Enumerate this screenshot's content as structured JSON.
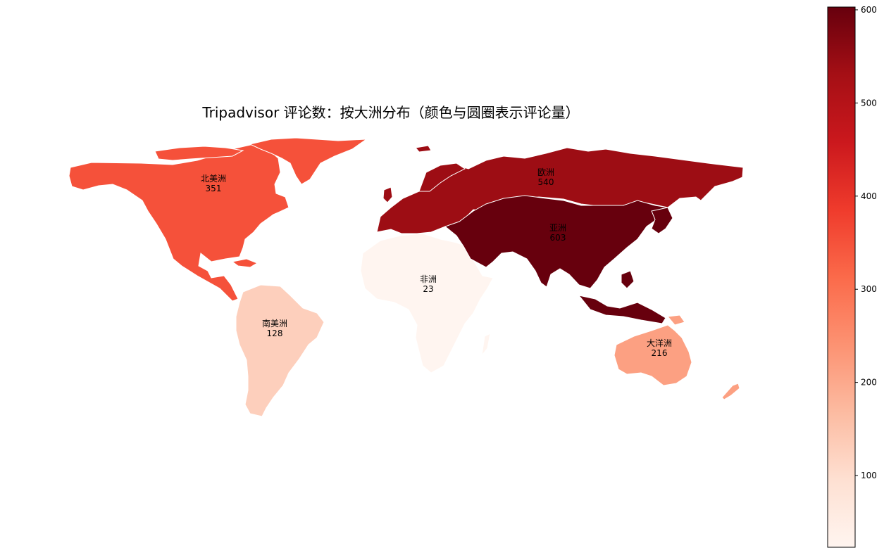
{
  "chart_data": {
    "type": "choropleth",
    "title": "Tripadvisor 评论数：按大洲分布（颜色与圆圈表示评论量）",
    "colormap": "Reds",
    "regions": [
      {
        "id": "north-america",
        "name": "北美洲",
        "value": 351,
        "value_label": "351"
      },
      {
        "id": "south-america",
        "name": "南美洲",
        "value": 128,
        "value_label": "128"
      },
      {
        "id": "europe",
        "name": "欧洲",
        "value": 540,
        "value_label": "540"
      },
      {
        "id": "africa",
        "name": "非洲",
        "value": 23,
        "value_label": "23"
      },
      {
        "id": "asia",
        "name": "亚洲",
        "value": 603,
        "value_label": "603"
      },
      {
        "id": "oceania",
        "name": "大洋洲",
        "value": 216,
        "value_label": "216"
      }
    ],
    "colorbar": {
      "range": [
        23,
        603
      ],
      "ticks": [
        100,
        200,
        300,
        400,
        500,
        600
      ],
      "tick_labels": [
        "100",
        "200",
        "300",
        "400",
        "500",
        "600"
      ]
    }
  }
}
